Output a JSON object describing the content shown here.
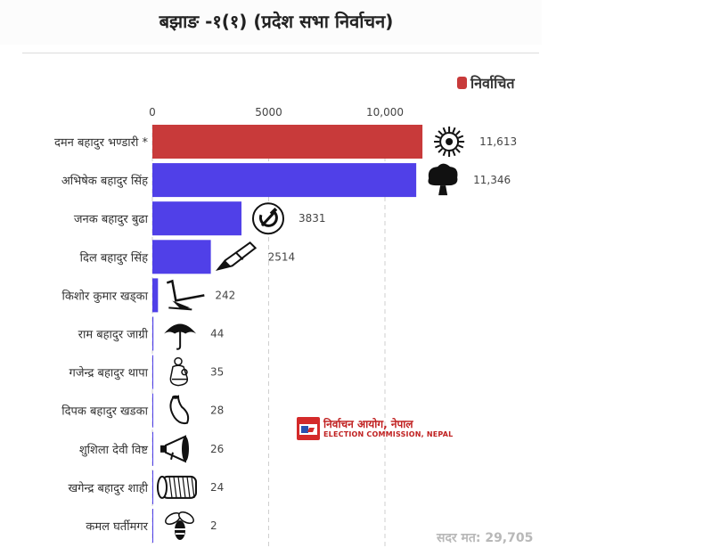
{
  "header": {
    "title": "बझाङ -१(१) (प्रदेश सभा निर्वाचन)"
  },
  "legend": {
    "label": "निर्वाचित",
    "color": "#c83a3a"
  },
  "logo": {
    "nepali": "निर्वाचन आयोग, नेपाल",
    "english": "ELECTION COMMISSION, NEPAL"
  },
  "total": {
    "text": "सदर मत: 29,705"
  },
  "chart_data": {
    "type": "bar",
    "orientation": "horizontal",
    "xlim": [
      0,
      12000
    ],
    "x_ticks": [
      0,
      5000,
      10000
    ],
    "x_tick_labels": [
      "0",
      "5000",
      "10,000"
    ],
    "grid": true,
    "legend_position": "top-right",
    "winner_color": "#c83a3a",
    "other_color": "#5040e8",
    "categories": [
      "दमन बहादुर भण्डारी *",
      "अभिषेक बहादुर सिंह",
      "जनक बहादुर बुढा",
      "दिल बहादुर सिंह",
      "किशोर कुमार खड्का",
      "राम बहादुर जाग्री",
      "गजेन्द्र बहादुर थापा",
      "दिपक बहादुर खडका",
      "शुशिला देवी विष्ट",
      "खगेन्द्र बहादुर शाही",
      "कमल घर्तीमगर"
    ],
    "values": [
      11613,
      11346,
      3831,
      2514,
      242,
      44,
      35,
      28,
      26,
      24,
      2
    ],
    "value_labels": [
      "11,613",
      "11,346",
      "3831",
      "2514",
      "242",
      "44",
      "35",
      "28",
      "26",
      "24",
      "2"
    ],
    "winner": [
      true,
      false,
      false,
      false,
      false,
      false,
      false,
      false,
      false,
      false,
      false
    ],
    "symbols": [
      "sun-icon",
      "tree-icon",
      "hammer-sickle-icon",
      "pen-icon",
      "plough-icon",
      "umbrella-icon",
      "mother-child-icon",
      "horn-icon",
      "megaphone-icon",
      "drum-icon",
      "bee-icon"
    ]
  }
}
